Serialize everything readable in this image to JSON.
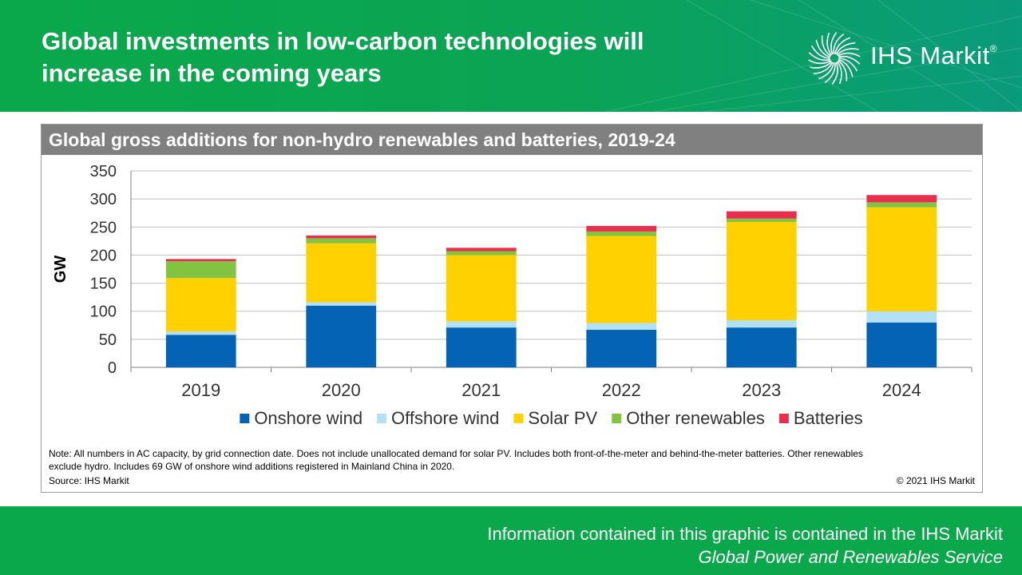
{
  "header": {
    "title_line1": "Global investments in low-carbon technologies will",
    "title_line2": "increase in the coming years",
    "logo_text": "IHS Markit",
    "logo_mark": "®"
  },
  "panel": {
    "title": "Global gross additions for non-hydro renewables and batteries, 2019-24",
    "note_line1": "Note: All numbers in AC capacity, by grid connection date. Does not include unallocated demand for solar PV. Includes both front-of-the-meter  and behind-the-meter  batteries. Other renewables",
    "note_line2": "exclude hydro. Includes 69 GW of onshore wind additions registered in Mainland China in 2020.",
    "source": "Source: IHS Markit",
    "copyright": "© 2021 IHS Markit"
  },
  "footer": {
    "line1": "Information contained in this graphic is contained in the IHS Markit",
    "line2": "Global Power and Renewables Service"
  },
  "colors": {
    "banner_green": "#0aa84a",
    "onshore": "#0563b6",
    "offshore": "#b3e0f5",
    "solar": "#ffd100",
    "other": "#82c341",
    "batteries": "#e8304e"
  },
  "chart_data": {
    "type": "bar",
    "stacked": true,
    "categories": [
      "2019",
      "2020",
      "2021",
      "2022",
      "2023",
      "2024"
    ],
    "ylabel": "GW",
    "ylim": [
      0,
      350
    ],
    "yticks": [
      "0",
      "50",
      "100",
      "150",
      "200",
      "250",
      "300",
      "350"
    ],
    "grid": true,
    "legend_position": "bottom",
    "series": [
      {
        "name": "Onshore wind",
        "color": "#0563b6",
        "values": [
          58,
          110,
          71,
          67,
          71,
          80
        ]
      },
      {
        "name": "Offshore wind",
        "color": "#b3e0f5",
        "values": [
          6,
          6,
          11,
          12,
          13,
          20
        ]
      },
      {
        "name": "Solar PV",
        "color": "#ffd100",
        "values": [
          95,
          105,
          118,
          155,
          175,
          185
        ]
      },
      {
        "name": "Other renewables",
        "color": "#82c341",
        "values": [
          30,
          9,
          7,
          8,
          6,
          9
        ]
      },
      {
        "name": "Batteries",
        "color": "#e8304e",
        "values": [
          4,
          5,
          6,
          10,
          13,
          13
        ]
      }
    ]
  }
}
